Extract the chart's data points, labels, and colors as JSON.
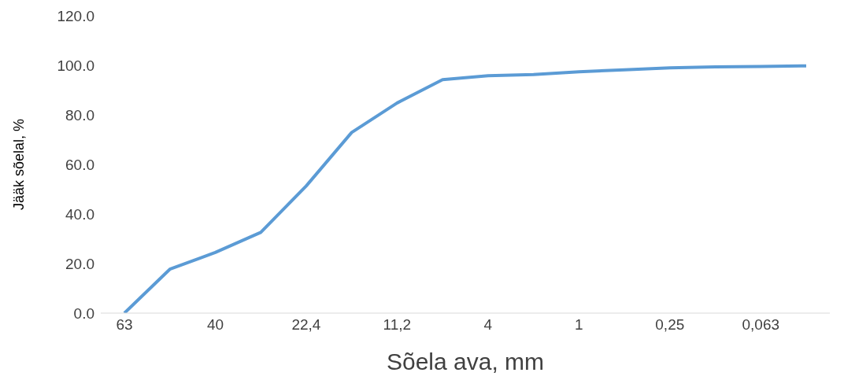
{
  "chart_data": {
    "type": "line",
    "xlabel": "Sõela ava, mm",
    "ylabel": "Jääk sõelal, %",
    "categories": [
      "63",
      null,
      "40",
      null,
      "22,4",
      null,
      "11,2",
      null,
      "4",
      null,
      "1",
      null,
      "0,25",
      null,
      "0,063",
      null
    ],
    "series": [
      {
        "color": "#5b9bd5",
        "values": [
          0,
          17.7,
          24.5,
          32.6,
          51.3,
          72.9,
          84.8,
          94.2,
          95.8,
          96.3,
          97.4,
          98.2,
          99.0,
          99.4,
          99.5,
          99.8
        ]
      }
    ],
    "ylim": [
      0,
      120
    ],
    "yticks": [
      {
        "value": 0,
        "label": "0.0"
      },
      {
        "value": 20,
        "label": "20.0"
      },
      {
        "value": 40,
        "label": "40.0"
      },
      {
        "value": 60,
        "label": "60.0"
      },
      {
        "value": 80,
        "label": "80.0"
      },
      {
        "value": 100,
        "label": "100.0"
      },
      {
        "value": 120,
        "label": "120.0"
      }
    ],
    "grid": false,
    "legend": false,
    "marker": "none",
    "line_style": "solid"
  }
}
